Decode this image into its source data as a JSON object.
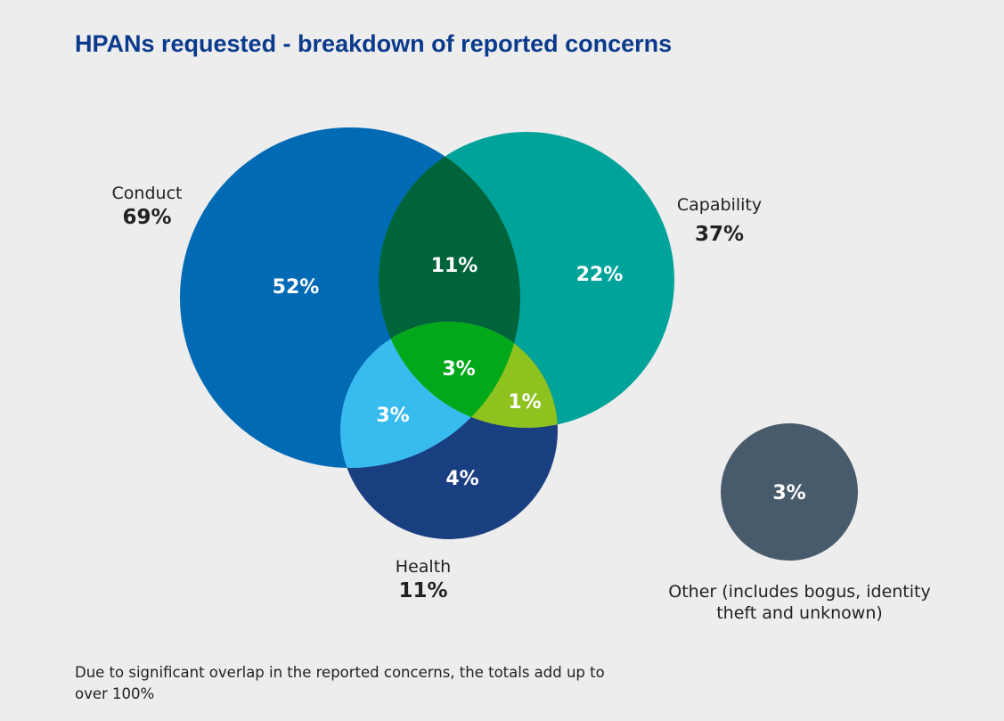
{
  "title": "HPANs requested - breakdown of reported concerns",
  "chart_data": {
    "type": "venn",
    "sets": [
      {
        "id": "conduct",
        "label": "Conduct",
        "total": "69%",
        "color": "#006ab4"
      },
      {
        "id": "capability",
        "label": "Capability",
        "total": "37%",
        "color": "#00a39a"
      },
      {
        "id": "health",
        "label": "Health",
        "total": "11%",
        "color": "#1a3f80"
      },
      {
        "id": "other",
        "label": "Other (includes bogus, identity theft and unknown)",
        "total": "3%",
        "color": "#475b6c"
      }
    ],
    "regions": {
      "conduct_only": {
        "value": "52%",
        "color": "#006ab4"
      },
      "capability_only": {
        "value": "22%",
        "color": "#00a39a"
      },
      "health_only": {
        "value": "4%",
        "color": "#1a3f80"
      },
      "conduct_capability": {
        "value": "11%",
        "color": "#00643a"
      },
      "conduct_health": {
        "value": "3%",
        "color": "#38bbee"
      },
      "capability_health": {
        "value": "1%",
        "color": "#8dc21f"
      },
      "all_three": {
        "value": "3%",
        "color": "#00a81a"
      },
      "other": {
        "value": "3%",
        "color": "#475b6c"
      }
    }
  },
  "footnote": "Due to significant overlap in the reported concerns, the totals add up to over 100%"
}
